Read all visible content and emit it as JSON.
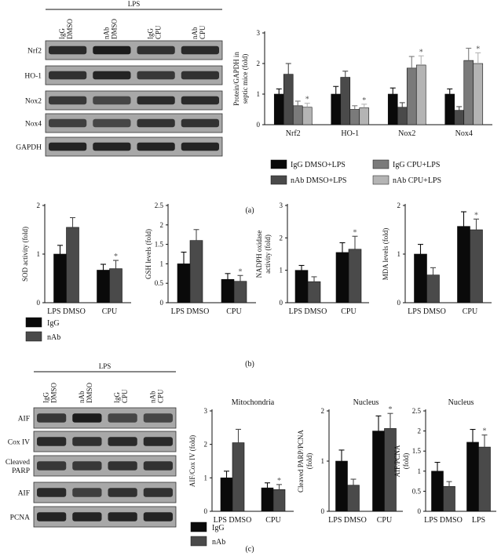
{
  "colors": {
    "black": "#0a0a0a",
    "darkgray": "#4a4a4a",
    "gray": "#7a7a7a",
    "lightgray": "#b4b4b4",
    "band": "#1c1c1c",
    "blotbg": "#a8a8a8"
  },
  "panel_labels": {
    "a": "(a)",
    "b": "(b)",
    "c": "(c)"
  },
  "blot_a": {
    "header": "LPS",
    "lanes": [
      [
        "IgG",
        "DMSO"
      ],
      [
        "nAb",
        "DMSO"
      ],
      [
        "IgG",
        "CPU"
      ],
      [
        "nAb",
        "CPU"
      ]
    ],
    "rows": [
      "Nrf2",
      "HO-1",
      "Nox2",
      "Nox4",
      "GAPDH"
    ]
  },
  "blot_c": {
    "header": "LPS",
    "lanes": [
      [
        "IgG",
        "DMSO"
      ],
      [
        "nAb",
        "DMSO"
      ],
      [
        "IgG",
        "CPU"
      ],
      [
        "nAb",
        "CPU"
      ]
    ],
    "rows": [
      "AIF",
      "Cox IV",
      "Cleaved PARP",
      "AIF",
      "PCNA"
    ]
  },
  "legend_a": [
    "IgG DMSO+LPS",
    "nAb DMSO+LPS",
    "IgG CPU+LPS",
    "nAb CPU+LPS"
  ],
  "legend_bc": [
    "IgG",
    "nAb"
  ],
  "chart_data": [
    {
      "id": "a",
      "type": "bar",
      "ylabel": [
        "Protein/GAPDH in",
        "septic mice (fold)"
      ],
      "ylim": [
        0,
        3
      ],
      "yticks": [
        0,
        1,
        2,
        3
      ],
      "categories": [
        "Nrf2",
        "HO-1",
        "Nox2",
        "Nox4"
      ],
      "series": [
        {
          "name": "IgG DMSO+LPS",
          "values": [
            1.0,
            1.0,
            1.0,
            1.0
          ],
          "errors": [
            0.17,
            0.25,
            0.2,
            0.17
          ]
        },
        {
          "name": "nAb DMSO+LPS",
          "values": [
            1.65,
            1.55,
            0.57,
            0.47
          ],
          "errors": [
            0.35,
            0.2,
            0.15,
            0.12
          ]
        },
        {
          "name": "IgG CPU+LPS",
          "values": [
            0.62,
            0.5,
            1.85,
            2.1
          ],
          "errors": [
            0.15,
            0.12,
            0.38,
            0.4
          ]
        },
        {
          "name": "nAb CPU+LPS",
          "values": [
            0.57,
            0.55,
            1.95,
            2.0
          ],
          "errors": [
            0.13,
            0.12,
            0.3,
            0.35
          ]
        }
      ],
      "stars": [
        [
          3,
          0
        ],
        [
          3,
          1
        ],
        [
          3,
          2
        ],
        [
          3,
          3
        ]
      ]
    },
    {
      "id": "b1",
      "type": "bar",
      "ylabel": [
        "SOD activity (fold)"
      ],
      "ylim": [
        0,
        2
      ],
      "yticks": [
        0,
        1,
        2
      ],
      "categories": [
        "LPS DMSO",
        "CPU"
      ],
      "series": [
        {
          "name": "IgG",
          "values": [
            1.0,
            0.67
          ],
          "errors": [
            0.18,
            0.12
          ]
        },
        {
          "name": "nAb",
          "values": [
            1.55,
            0.7
          ],
          "errors": [
            0.2,
            0.17
          ]
        }
      ],
      "stars": [
        [
          1,
          1
        ]
      ]
    },
    {
      "id": "b2",
      "type": "bar",
      "ylabel": [
        "GSH levels (fold)"
      ],
      "ylim": [
        0,
        2.5
      ],
      "yticks": [
        0,
        0.5,
        1,
        1.5,
        2,
        2.5
      ],
      "categories": [
        "LPS DMSO",
        "CPU"
      ],
      "series": [
        {
          "name": "IgG",
          "values": [
            1.0,
            0.6
          ],
          "errors": [
            0.3,
            0.15
          ]
        },
        {
          "name": "nAb",
          "values": [
            1.6,
            0.55
          ],
          "errors": [
            0.28,
            0.15
          ]
        }
      ],
      "stars": [
        [
          1,
          1
        ]
      ]
    },
    {
      "id": "b3",
      "type": "bar",
      "ylabel": [
        "NADPH oxidase",
        "activity (fold)"
      ],
      "ylim": [
        0,
        3
      ],
      "yticks": [
        0,
        1,
        2,
        3
      ],
      "categories": [
        "LPS DMSO",
        "CPU"
      ],
      "series": [
        {
          "name": "IgG",
          "values": [
            1.0,
            1.55
          ],
          "errors": [
            0.15,
            0.3
          ]
        },
        {
          "name": "nAb",
          "values": [
            0.65,
            1.65
          ],
          "errors": [
            0.15,
            0.4
          ]
        }
      ],
      "stars": [
        [
          1,
          1
        ]
      ]
    },
    {
      "id": "b4",
      "type": "bar",
      "ylabel": [
        "MDA levels (fold)"
      ],
      "ylim": [
        0,
        2
      ],
      "yticks": [
        0,
        1,
        2
      ],
      "categories": [
        "LPS DMSO",
        "CPU"
      ],
      "series": [
        {
          "name": "IgG",
          "values": [
            1.0,
            1.57
          ],
          "errors": [
            0.2,
            0.3
          ]
        },
        {
          "name": "nAb",
          "values": [
            0.57,
            1.5
          ],
          "errors": [
            0.15,
            0.22
          ]
        }
      ],
      "stars": [
        [
          1,
          1
        ]
      ]
    },
    {
      "id": "c1",
      "type": "bar",
      "title": "Mitochondria",
      "ylabel": [
        "AIF/Cox IV (fold)"
      ],
      "ylim": [
        0,
        3
      ],
      "yticks": [
        0,
        1,
        2,
        3
      ],
      "categories": [
        "LPS DMSO",
        "CPU"
      ],
      "series": [
        {
          "name": "IgG",
          "values": [
            1.0,
            0.7
          ],
          "errors": [
            0.2,
            0.15
          ]
        },
        {
          "name": "nAb",
          "values": [
            2.05,
            0.65
          ],
          "errors": [
            0.4,
            0.15
          ]
        }
      ],
      "stars": [
        [
          1,
          1
        ]
      ]
    },
    {
      "id": "c2",
      "type": "bar",
      "title": "Nucleus",
      "ylabel": [
        "Cleaved PARP/PCNA",
        "(fold)"
      ],
      "ylim": [
        0,
        2
      ],
      "yticks": [
        0,
        1,
        2
      ],
      "categories": [
        "LPS DMSO",
        "CPU"
      ],
      "series": [
        {
          "name": "IgG",
          "values": [
            1.0,
            1.6
          ],
          "errors": [
            0.22,
            0.3
          ]
        },
        {
          "name": "nAb",
          "values": [
            0.52,
            1.65
          ],
          "errors": [
            0.12,
            0.3
          ]
        }
      ],
      "stars": [
        [
          1,
          1
        ]
      ]
    },
    {
      "id": "c3",
      "type": "bar",
      "title": "Nucleus",
      "ylabel": [
        "AIF/PCNA",
        "(fold)"
      ],
      "ylim": [
        0,
        2.5
      ],
      "yticks": [
        0,
        0.5,
        1,
        1.5,
        2,
        2.5
      ],
      "categories": [
        "LPS DMSO",
        "LPS"
      ],
      "series": [
        {
          "name": "IgG",
          "values": [
            1.0,
            1.72
          ],
          "errors": [
            0.22,
            0.32
          ]
        },
        {
          "name": "nAb",
          "values": [
            0.62,
            1.6
          ],
          "errors": [
            0.12,
            0.3
          ]
        }
      ],
      "stars": [
        [
          1,
          1
        ]
      ]
    }
  ]
}
